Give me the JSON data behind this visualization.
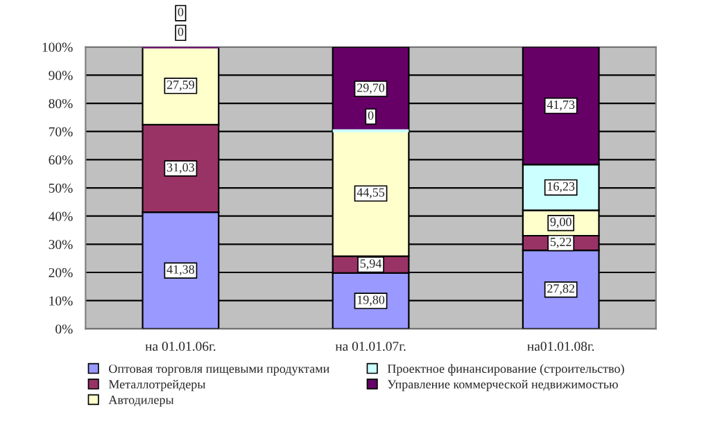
{
  "chart_data": {
    "type": "bar",
    "stacked": true,
    "categories": [
      "на 01.01.06г.",
      "на 01.01.07г.",
      "на01.01.08г."
    ],
    "series": [
      {
        "name": "Оптовая торговля пищевыми продуктами",
        "color": "#9999ff",
        "values": [
          41.38,
          19.8,
          27.82
        ],
        "value_labels": [
          "41,38",
          "19,80",
          "27,82"
        ]
      },
      {
        "name": "Металлотрейдеры",
        "color": "#993366",
        "values": [
          31.03,
          5.94,
          5.22
        ],
        "value_labels": [
          "31,03",
          "5,94",
          "5,22"
        ]
      },
      {
        "name": "Автодилеры",
        "color": "#ffffcc",
        "values": [
          27.59,
          44.55,
          9.0
        ],
        "value_labels": [
          "27,59",
          "44,55",
          "9,00"
        ]
      },
      {
        "name": "Проектное финансирование (строительство)",
        "color": "#ccffff",
        "values": [
          0,
          0,
          16.23
        ],
        "value_labels": [
          "0",
          "0",
          "16,23"
        ]
      },
      {
        "name": "Управление коммерческой недвижимостью",
        "color": "#660066",
        "values": [
          0,
          29.7,
          41.73
        ],
        "value_labels": [
          "0",
          "29,70",
          "41,73"
        ]
      }
    ],
    "ylim": [
      0,
      100
    ],
    "yticks": [
      {
        "value": 0,
        "label": "0%"
      },
      {
        "value": 10,
        "label": "10%"
      },
      {
        "value": 20,
        "label": "20%"
      },
      {
        "value": 30,
        "label": "30%"
      },
      {
        "value": 40,
        "label": "40%"
      },
      {
        "value": 50,
        "label": "50%"
      },
      {
        "value": 60,
        "label": "60%"
      },
      {
        "value": 70,
        "label": "70%"
      },
      {
        "value": 80,
        "label": "80%"
      },
      {
        "value": 90,
        "label": "90%"
      },
      {
        "value": 100,
        "label": "100%"
      }
    ],
    "grid": "y",
    "legend": "bottom"
  }
}
